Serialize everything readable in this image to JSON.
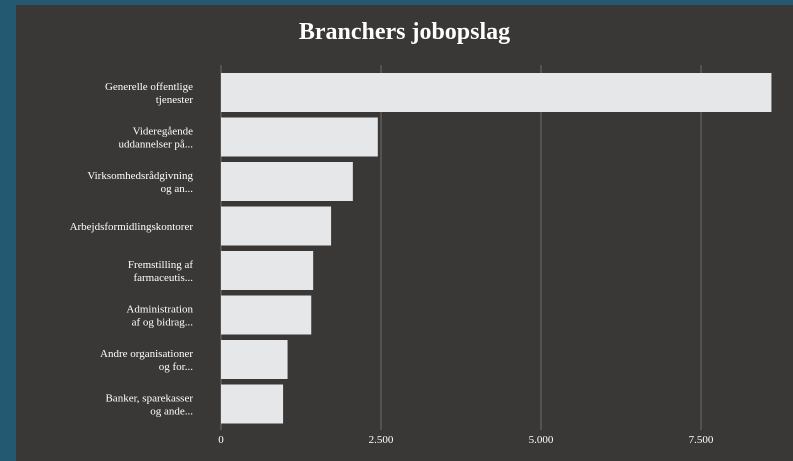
{
  "chart_data": {
    "type": "bar",
    "orientation": "horizontal",
    "title": "Branchers jobopslag",
    "categories": [
      [
        "Generelle offentlige",
        "tjenester"
      ],
      [
        "Videregående",
        "uddannelser på..."
      ],
      [
        "Virksomhedsrådgivning",
        "og an..."
      ],
      [
        "Arbejdsformidlingskontorer"
      ],
      [
        "Fremstilling af",
        "farmaceutis..."
      ],
      [
        "Administration",
        "af og bidrag..."
      ],
      [
        "Andre organisationer",
        "og for..."
      ],
      [
        "Banker, sparekasser",
        "og ande..."
      ]
    ],
    "values": [
      8600,
      2450,
      2060,
      1720,
      1440,
      1410,
      1040,
      970
    ],
    "xlim": [
      0,
      8640
    ],
    "xticks": [
      0,
      2500,
      5000,
      7500
    ],
    "xtick_labels": [
      "0",
      "2.500",
      "5.000",
      "7.500"
    ],
    "grid": true,
    "colors": {
      "background": "#3a3836",
      "frame": "#235a72",
      "bar": "#e6e7e9",
      "grid": "#6f6e6c",
      "text": "#ffffff"
    }
  }
}
